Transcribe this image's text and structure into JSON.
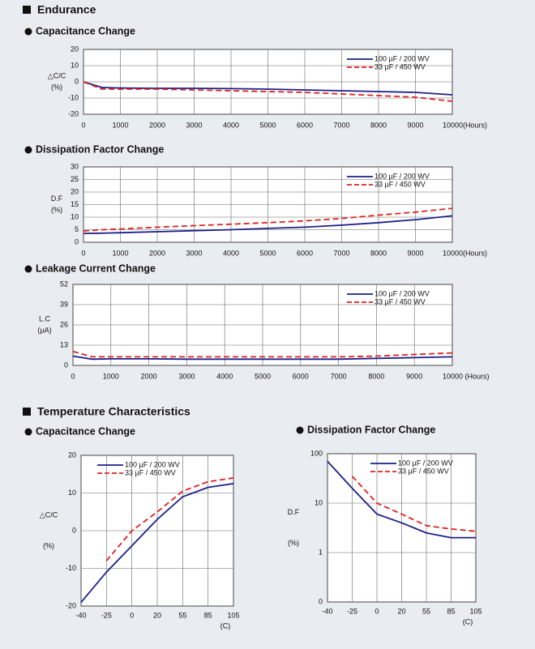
{
  "sections": [
    "Endurance",
    "Temperature Characteristics"
  ],
  "chart_data": [
    {
      "type": "line",
      "title": "Capacitance Change",
      "ylabel": "△C/C",
      "yunit": "(%)",
      "x": [
        0,
        500,
        1000,
        2000,
        3000,
        4000,
        5000,
        6000,
        7000,
        8000,
        9000,
        10000
      ],
      "xlim": [
        0,
        10000
      ],
      "xticks": [
        0,
        1000,
        2000,
        3000,
        4000,
        5000,
        6000,
        7000,
        8000,
        9000,
        {
          "value": 10000,
          "label": "10000(Hours)"
        }
      ],
      "ylim": [
        -20,
        20
      ],
      "yticks": [
        -20,
        -10,
        0,
        10,
        20
      ],
      "grid": true,
      "legend": "upper right",
      "series": [
        {
          "name": "100 µF / 200 WV",
          "color": "#1c1f8a",
          "dash": false,
          "values": [
            0,
            -3.5,
            -3.8,
            -4,
            -4,
            -4.2,
            -4.5,
            -5,
            -5.5,
            -6,
            -6.5,
            -8
          ]
        },
        {
          "name": "33 µF / 450 WV",
          "color": "#e02020",
          "dash": true,
          "values": [
            0,
            -4.5,
            -4.5,
            -4.5,
            -5,
            -5.5,
            -6,
            -6.5,
            -7.5,
            -8.5,
            -9.5,
            -12
          ]
        }
      ]
    },
    {
      "type": "line",
      "title": "Dissipation Factor Change",
      "ylabel": "D.F",
      "yunit": "(%)",
      "x": [
        0,
        500,
        1000,
        2000,
        3000,
        4000,
        5000,
        6000,
        7000,
        8000,
        9000,
        10000
      ],
      "xlim": [
        0,
        10000
      ],
      "xticks": [
        0,
        1000,
        2000,
        3000,
        4000,
        5000,
        6000,
        7000,
        8000,
        9000,
        {
          "value": 10000,
          "label": "10000(Hours)"
        }
      ],
      "ylim": [
        0,
        30
      ],
      "yticks": [
        0,
        5,
        10,
        15,
        20,
        25,
        30
      ],
      "grid": true,
      "legend": "upper right",
      "series": [
        {
          "name": "100 µF / 200 WV",
          "color": "#1c1f8a",
          "dash": false,
          "values": [
            3.5,
            3.6,
            3.8,
            4.2,
            4.6,
            5,
            5.5,
            6,
            6.8,
            7.8,
            9,
            10.5
          ]
        },
        {
          "name": "33 µF / 450 WV",
          "color": "#e02020",
          "dash": true,
          "values": [
            4.5,
            5,
            5.3,
            6,
            6.6,
            7.2,
            7.8,
            8.5,
            9.5,
            10.8,
            12,
            13.5
          ]
        }
      ]
    },
    {
      "type": "line",
      "title": "Leakage Current Change",
      "ylabel": "L.C",
      "yunit": "(µA)",
      "x": [
        0,
        500,
        1000,
        2000,
        3000,
        4000,
        5000,
        6000,
        7000,
        8000,
        9000,
        10000
      ],
      "xlim": [
        0,
        10000
      ],
      "xticks": [
        0,
        1000,
        2000,
        3000,
        4000,
        5000,
        6000,
        7000,
        8000,
        9000,
        {
          "value": 10000,
          "label": "10000 (Hours)"
        }
      ],
      "ylim": [
        0,
        52
      ],
      "yticks": [
        0,
        13,
        26,
        39,
        52
      ],
      "grid": true,
      "legend": "upper right",
      "series": [
        {
          "name": "100 µF / 200 WV",
          "color": "#1c1f8a",
          "dash": false,
          "values": [
            6,
            4,
            4.2,
            4.2,
            4,
            4,
            4,
            4,
            4,
            4.5,
            5,
            5.5
          ]
        },
        {
          "name": "33 µF / 450 WV",
          "color": "#e02020",
          "dash": true,
          "values": [
            9,
            5.5,
            5.5,
            5.5,
            5.5,
            5.5,
            5.5,
            5.5,
            5.5,
            6,
            7,
            8
          ]
        }
      ]
    },
    {
      "type": "line",
      "title": "Capacitance Change",
      "ylabel": "△C/C",
      "yunit": "(%)",
      "xlabel": "(C)",
      "categories": [
        "-40",
        "-25",
        "0",
        "20",
        "55",
        "85",
        "105"
      ],
      "ylim": [
        -20,
        20
      ],
      "yticks": [
        -20,
        -10,
        0,
        10,
        20
      ],
      "grid": true,
      "legend": "upper left",
      "series": [
        {
          "name": "100 µF / 200 WV",
          "color": "#1c1f8a",
          "dash": false,
          "values": [
            -19,
            -11,
            -4,
            3,
            9,
            11.5,
            12.5
          ]
        },
        {
          "name": "33 µF / 450 WV",
          "color": "#e02020",
          "dash": true,
          "values": [
            null,
            -8,
            0,
            5,
            10.5,
            13,
            14
          ]
        }
      ]
    },
    {
      "type": "line",
      "title": "Dissipation Factor Change",
      "ylabel": "D.F",
      "yunit": "(%)",
      "xlabel": "(C)",
      "categories": [
        "-40",
        "-25",
        "0",
        "20",
        "55",
        "85",
        "105"
      ],
      "log": true,
      "ylim": [
        0.1,
        100
      ],
      "yticks": [
        {
          "value": 0.1,
          "label": "0"
        },
        1,
        10,
        100
      ],
      "grid": true,
      "legend": "upper right",
      "series": [
        {
          "name": "100 µF / 200 WV",
          "color": "#1c1f8a",
          "dash": false,
          "values": [
            70,
            20,
            6,
            4,
            2.5,
            2,
            2
          ]
        },
        {
          "name": "33 µF / 450 WV",
          "color": "#e02020",
          "dash": true,
          "values": [
            null,
            35,
            10,
            6,
            3.5,
            3,
            2.7
          ]
        }
      ]
    }
  ]
}
